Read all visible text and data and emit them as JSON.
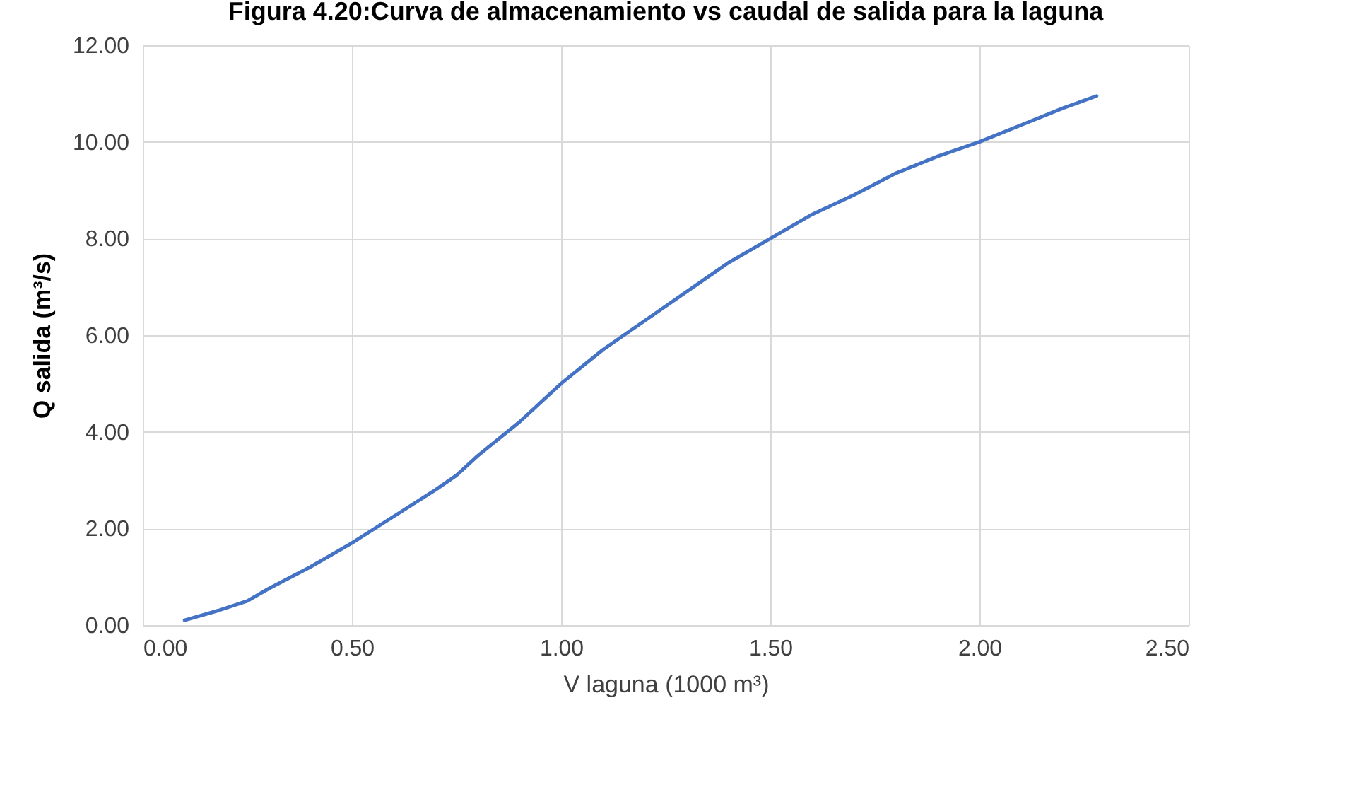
{
  "chart_data": {
    "type": "line",
    "title": "Figura 4.20:Curva de almacenamiento vs caudal de salida para la laguna",
    "xlabel": "V laguna (1000 m³)",
    "ylabel": "Q salida (m³/s)",
    "x": [
      0.1,
      0.18,
      0.25,
      0.3,
      0.4,
      0.5,
      0.6,
      0.7,
      0.75,
      0.8,
      0.9,
      1.0,
      1.1,
      1.2,
      1.25,
      1.4,
      1.5,
      1.6,
      1.7,
      1.8,
      1.9,
      2.0,
      2.1,
      2.2,
      2.28
    ],
    "series": [
      {
        "color": "#4472c4",
        "values": [
          0.1,
          0.3,
          0.5,
          0.75,
          1.2,
          1.7,
          2.25,
          2.8,
          3.1,
          3.5,
          4.2,
          5.0,
          5.7,
          6.3,
          6.6,
          7.5,
          8.0,
          8.5,
          8.9,
          9.35,
          9.7,
          10.0,
          10.35,
          10.7,
          10.95
        ]
      }
    ],
    "xlim": [
      0,
      2.5
    ],
    "xticks": [
      {
        "value": 0,
        "label": "0.00"
      },
      {
        "value": 0.5,
        "label": "0.50"
      },
      {
        "value": 1,
        "label": "1.00"
      },
      {
        "value": 1.5,
        "label": "1.50"
      },
      {
        "value": 2,
        "label": "2.00"
      },
      {
        "value": 2.5,
        "label": "2.50"
      }
    ],
    "ylim": [
      0,
      12
    ],
    "yticks": [
      {
        "value": 0,
        "label": "0.00"
      },
      {
        "value": 2,
        "label": "2.00"
      },
      {
        "value": 4,
        "label": "4.00"
      },
      {
        "value": 6,
        "label": "6.00"
      },
      {
        "value": 8,
        "label": "8.00"
      },
      {
        "value": 10,
        "label": "10.00"
      },
      {
        "value": 12,
        "label": "12.00"
      }
    ],
    "grid": true,
    "marker": "none",
    "line_style": "solid"
  }
}
